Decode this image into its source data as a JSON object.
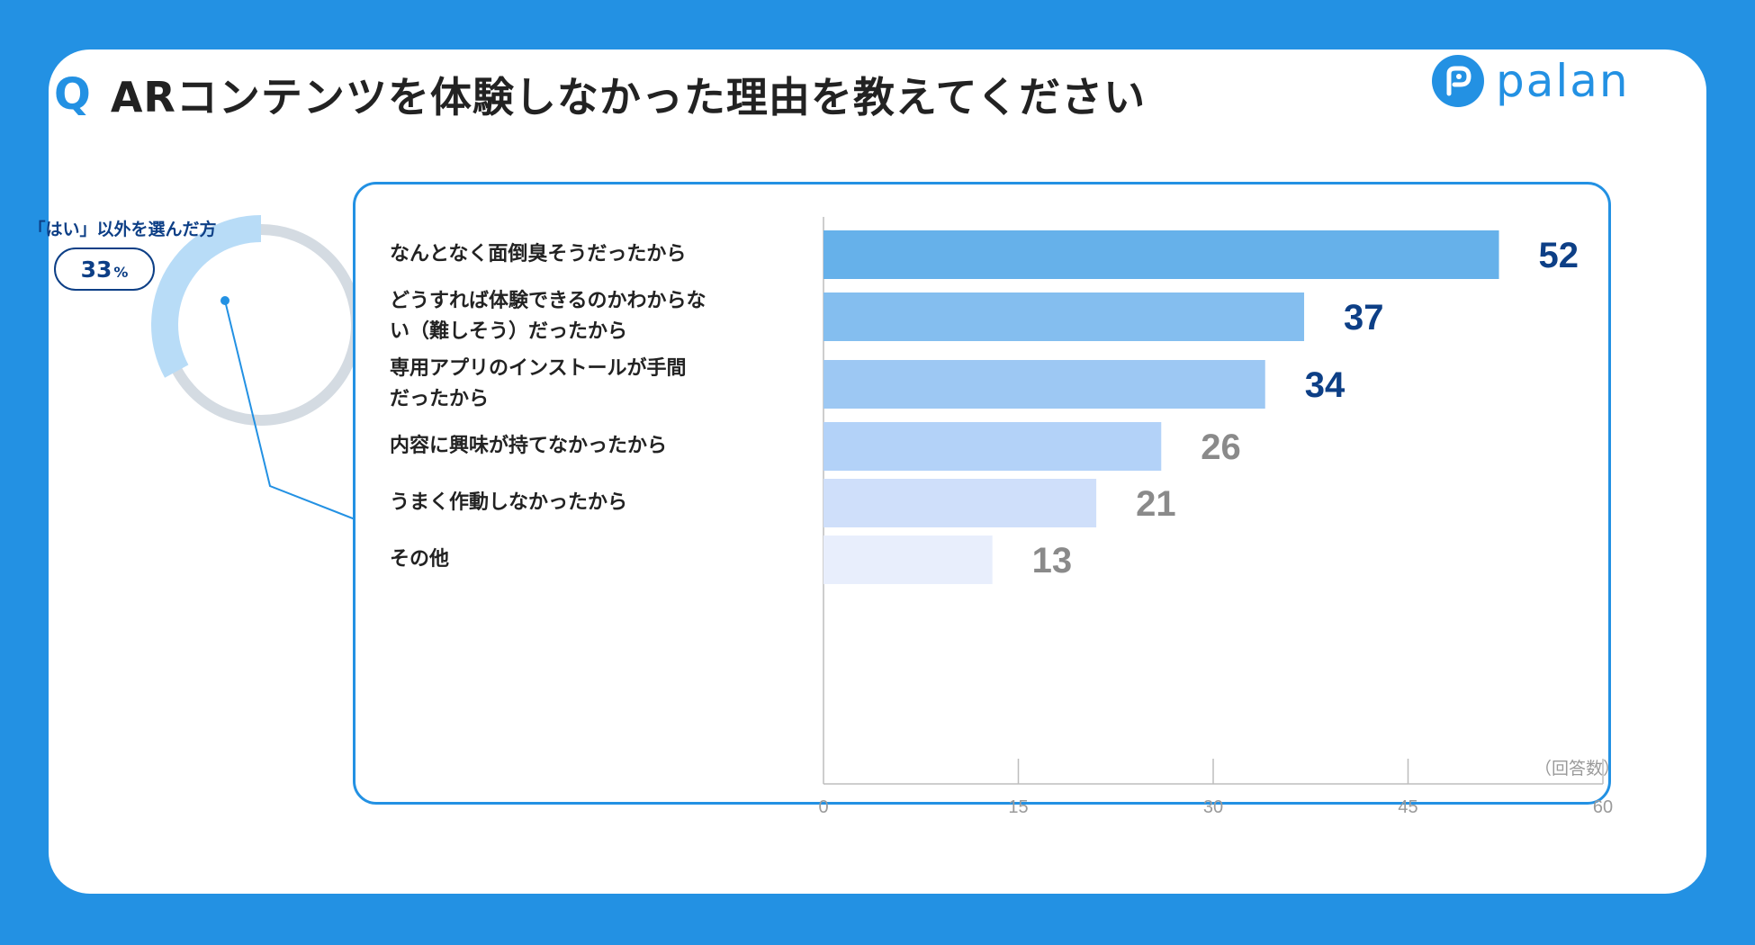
{
  "header": {
    "q_mark": "Q",
    "title": "ARコンテンツを体験しなかった理由を教えてください"
  },
  "logo": {
    "text": "palan",
    "icon": "palan-logo-icon",
    "color": "#2391e3"
  },
  "donut": {
    "label": "「はい」以外を選んだ方",
    "percent": "33",
    "percent_unit": "%",
    "value_fraction": 0.33,
    "highlight_color": "#b8dcf7",
    "track_color": "#d4dbe2"
  },
  "chart_data": {
    "type": "bar",
    "orientation": "horizontal",
    "categories": [
      "なんとなく面倒臭そうだったから",
      "どうすれば体験できるのかわからない（難しそう）だったから",
      "専用アプリのインストールが手間だったから",
      "内容に興味が持てなかったから",
      "うまく作動しなかったから",
      "その他"
    ],
    "category_lines": [
      [
        "なんとなく面倒臭そうだったから"
      ],
      [
        "どうすれば体験できるのかわからな",
        "い（難しそう）だったから"
      ],
      [
        "専用アプリのインストールが手間",
        "だったから"
      ],
      [
        "内容に興味が持てなかったから"
      ],
      [
        "うまく作動しなかったから"
      ],
      [
        "その他"
      ]
    ],
    "values": [
      52,
      37,
      34,
      26,
      21,
      13
    ],
    "value_labels": [
      "52",
      "37",
      "34",
      "26",
      "21",
      "13"
    ],
    "bar_colors": [
      "#66b1ea",
      "#84beef",
      "#9dc8f3",
      "#b3d2f8",
      "#cfdffa",
      "#e8eefc"
    ],
    "value_label_colors": [
      "#0d3f86",
      "#0d3f86",
      "#0d3f86",
      "#8a8a8a",
      "#8a8a8a",
      "#8a8a8a"
    ],
    "xlim": [
      0,
      60
    ],
    "xticks": [
      "0",
      "15",
      "30",
      "45",
      "60"
    ],
    "xlabel": "（回答数）",
    "title": "ARコンテンツを体験しなかった理由を教えてください"
  }
}
